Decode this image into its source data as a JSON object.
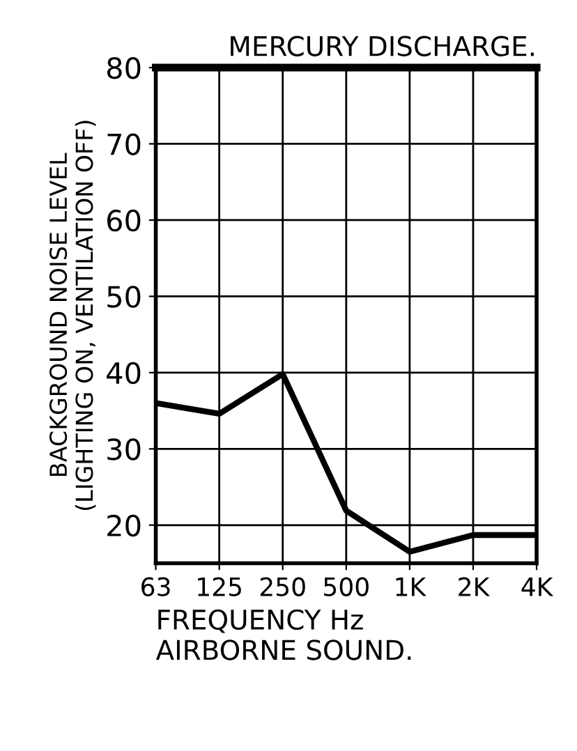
{
  "chart_data": {
    "type": "line",
    "title": "MERCURY DISCHARGE.",
    "xlabel": "FREQUENCY Hz\nAIRBORNE SOUND.",
    "ylabel": "BACKGROUND NOISE LEVEL\n(LIGHTING ON, VENTILATION OFF)",
    "categories": [
      "63",
      "125",
      "250",
      "500",
      "1K",
      "2K",
      "4K"
    ],
    "series": [
      {
        "color": "#000000",
        "values": [
          36,
          34.6,
          39.8,
          21.9,
          16.5,
          18.7,
          18.7
        ]
      }
    ],
    "ylim": [
      15,
      80
    ],
    "yticks": [
      20,
      30,
      40,
      50,
      60,
      70,
      80
    ],
    "grid": true,
    "marker": "none",
    "line_style": "solid"
  }
}
